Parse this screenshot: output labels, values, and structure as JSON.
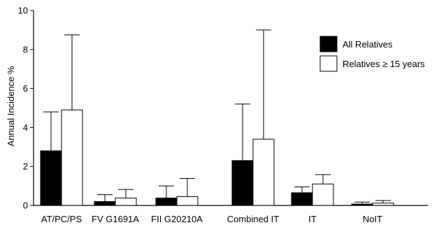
{
  "chart_data": {
    "type": "bar",
    "ylabel": "Annual Incidence %",
    "ylim": [
      0,
      10
    ],
    "yticks": [
      0,
      2,
      4,
      6,
      8,
      10
    ],
    "categories": [
      "AT/PC/PS",
      "FV G1691A",
      "FII G20210A",
      "Combined IT",
      "IT",
      "NoIT"
    ],
    "series": [
      {
        "name": "All Relatives",
        "color": "#000000",
        "values": [
          2.8,
          0.2,
          0.38,
          2.3,
          0.65,
          0.07
        ],
        "error_upper": [
          4.8,
          0.55,
          1.0,
          5.2,
          0.95,
          0.17
        ]
      },
      {
        "name": "Relatives ≥ 15 years",
        "color": "#ffffff",
        "values": [
          4.9,
          0.38,
          0.45,
          3.4,
          1.1,
          0.12
        ],
        "error_upper": [
          8.75,
          0.82,
          1.38,
          9.0,
          1.58,
          0.25
        ]
      }
    ],
    "legend_position": "top-right",
    "grid": false
  }
}
